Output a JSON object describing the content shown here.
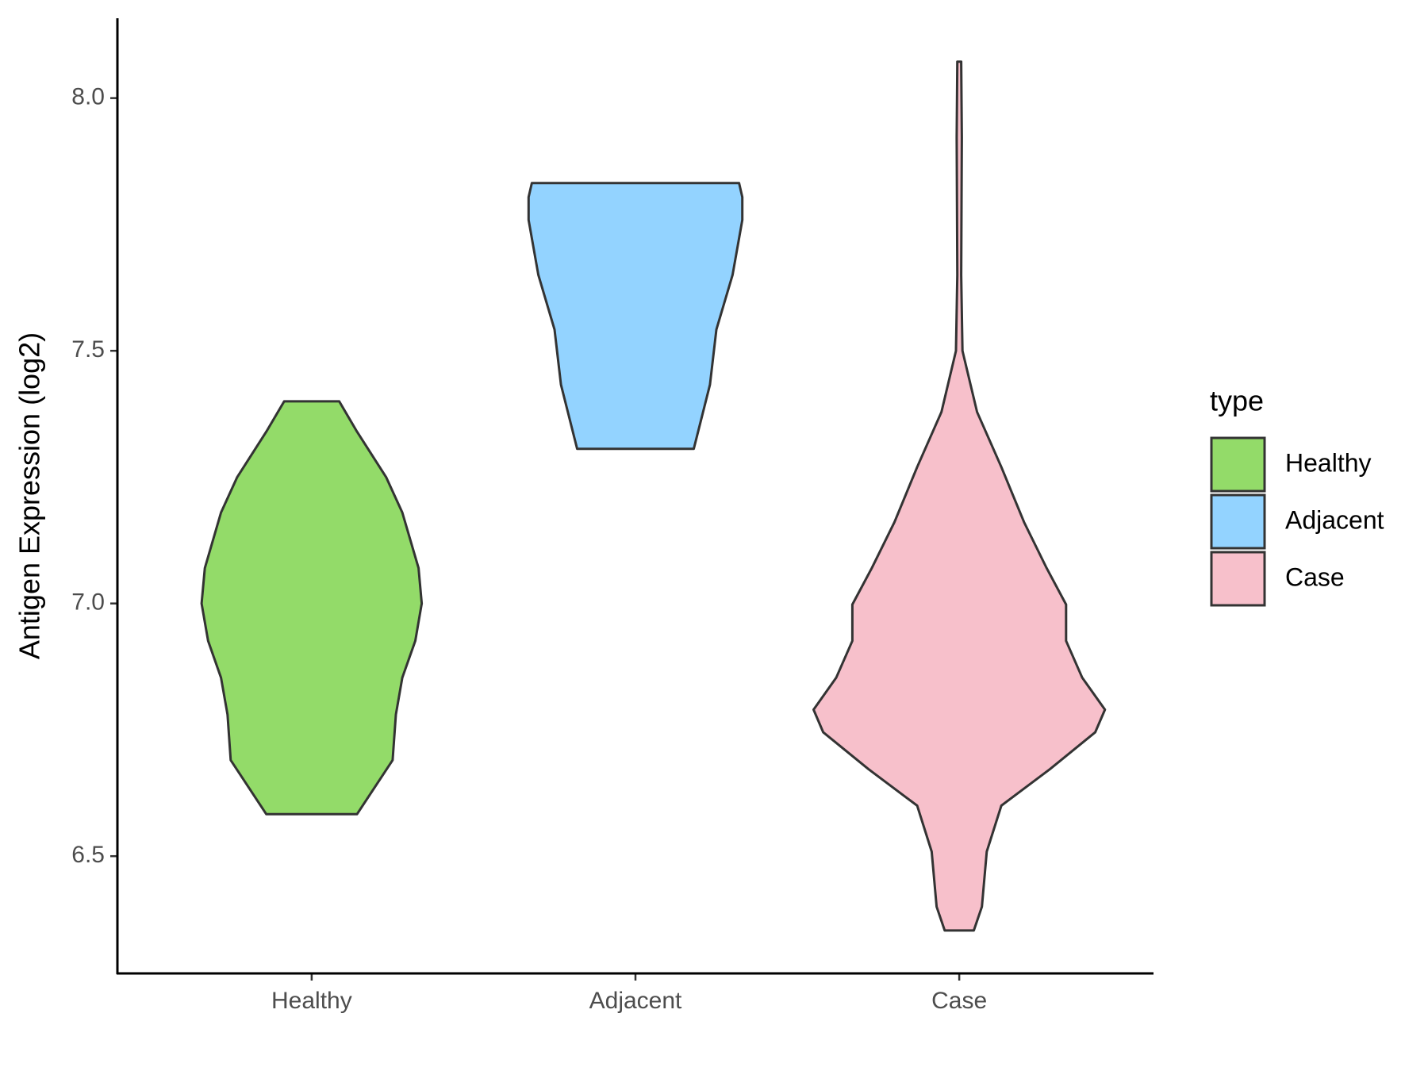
{
  "chart_data": {
    "type": "violin",
    "y_label": "Antigen Expression (log2)",
    "categories": [
      "Healthy",
      "Adjacent",
      "Case"
    ],
    "legend_title": "type",
    "ylim": [
      6.268,
      8.158
    ],
    "yticks": [
      {
        "value": 6.5,
        "label": "6.5"
      },
      {
        "value": 7,
        "label": "7.0"
      },
      {
        "value": 7.5,
        "label": "7.5"
      },
      {
        "value": 8,
        "label": "8.0"
      }
    ],
    "legend_position": "right",
    "series": [
      {
        "name": "Healthy",
        "color": "#93db69",
        "y": [
          6.583,
          6.69,
          6.78,
          6.853,
          6.926,
          7.0,
          7.07,
          7.18,
          7.25,
          7.34,
          7.4
        ],
        "half_width": [
          0.14,
          0.25,
          0.26,
          0.28,
          0.32,
          0.34,
          0.33,
          0.28,
          0.23,
          0.14,
          0.085
        ]
      },
      {
        "name": "Adjacent",
        "color": "#93d3ff",
        "y": [
          7.306,
          7.433,
          7.542,
          7.65,
          7.759,
          7.804,
          7.832
        ],
        "half_width": [
          0.18,
          0.23,
          0.25,
          0.3,
          0.33,
          0.33,
          0.32
        ]
      },
      {
        "name": "Case",
        "color": "#f7c0cb",
        "y": [
          6.353,
          6.4,
          6.509,
          6.6,
          6.672,
          6.745,
          6.79,
          6.853,
          6.926,
          6.998,
          7.07,
          7.161,
          7.27,
          7.379,
          7.5,
          7.65,
          7.922,
          8.072
        ],
        "half_width": [
          0.045,
          0.07,
          0.085,
          0.13,
          0.28,
          0.42,
          0.45,
          0.38,
          0.33,
          0.33,
          0.27,
          0.2,
          0.13,
          0.055,
          0.01,
          0.006,
          0.008,
          0.006
        ]
      }
    ]
  }
}
